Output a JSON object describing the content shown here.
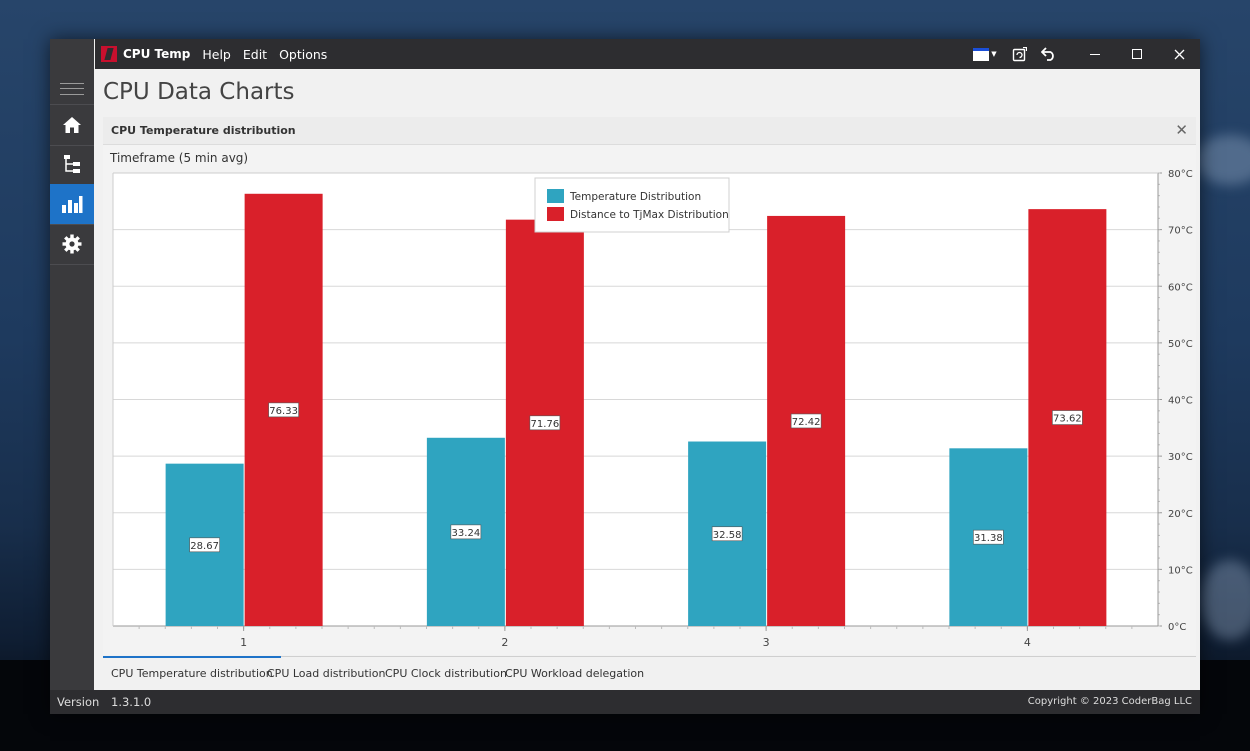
{
  "app": {
    "name": "CPU Temp"
  },
  "menu": [
    {
      "label": "Help"
    },
    {
      "label": "Edit"
    },
    {
      "label": "Options"
    }
  ],
  "page_title": "CPU Data Charts",
  "panel": {
    "title": "CPU Temperature distribution",
    "close_glyph": "✕"
  },
  "timeframe_label": "Timeframe (5 min avg)",
  "sidebar": {
    "items": [
      {
        "name": "home",
        "icon": "home-icon",
        "active": false
      },
      {
        "name": "tree",
        "icon": "tree-icon",
        "active": false
      },
      {
        "name": "charts",
        "icon": "bar-chart-icon",
        "active": true
      },
      {
        "name": "settings",
        "icon": "gear-icon",
        "active": false
      }
    ]
  },
  "tabs": [
    {
      "label": "CPU Temperature distribution",
      "active": true
    },
    {
      "label": "CPU Load distribution",
      "active": false
    },
    {
      "label": "CPU Clock distribution",
      "active": false
    },
    {
      "label": "CPU Workload delegation",
      "active": false
    }
  ],
  "status": {
    "version_label": "Version",
    "version": "1.3.1.0",
    "copyright": "Copyright © 2023 CoderBag LLC"
  },
  "colors": {
    "temperature": "#2fa4c0",
    "distance": "#d9202a",
    "accent": "#1e73c8"
  },
  "chart_data": {
    "type": "bar",
    "categories": [
      "1",
      "2",
      "3",
      "4"
    ],
    "series": [
      {
        "name": "Temperature Distribution",
        "values": [
          28.67,
          33.24,
          32.58,
          31.38
        ]
      },
      {
        "name": "Distance to TjMax Distribution",
        "values": [
          76.33,
          71.76,
          72.42,
          73.62
        ]
      }
    ],
    "y_ticks": [
      "0°C",
      "10°C",
      "20°C",
      "30°C",
      "40°C",
      "50°C",
      "60°C",
      "70°C",
      "80°C"
    ],
    "ylim": [
      0,
      80
    ],
    "y_axis_side": "right",
    "grid": true,
    "legend_position": "top-center"
  }
}
